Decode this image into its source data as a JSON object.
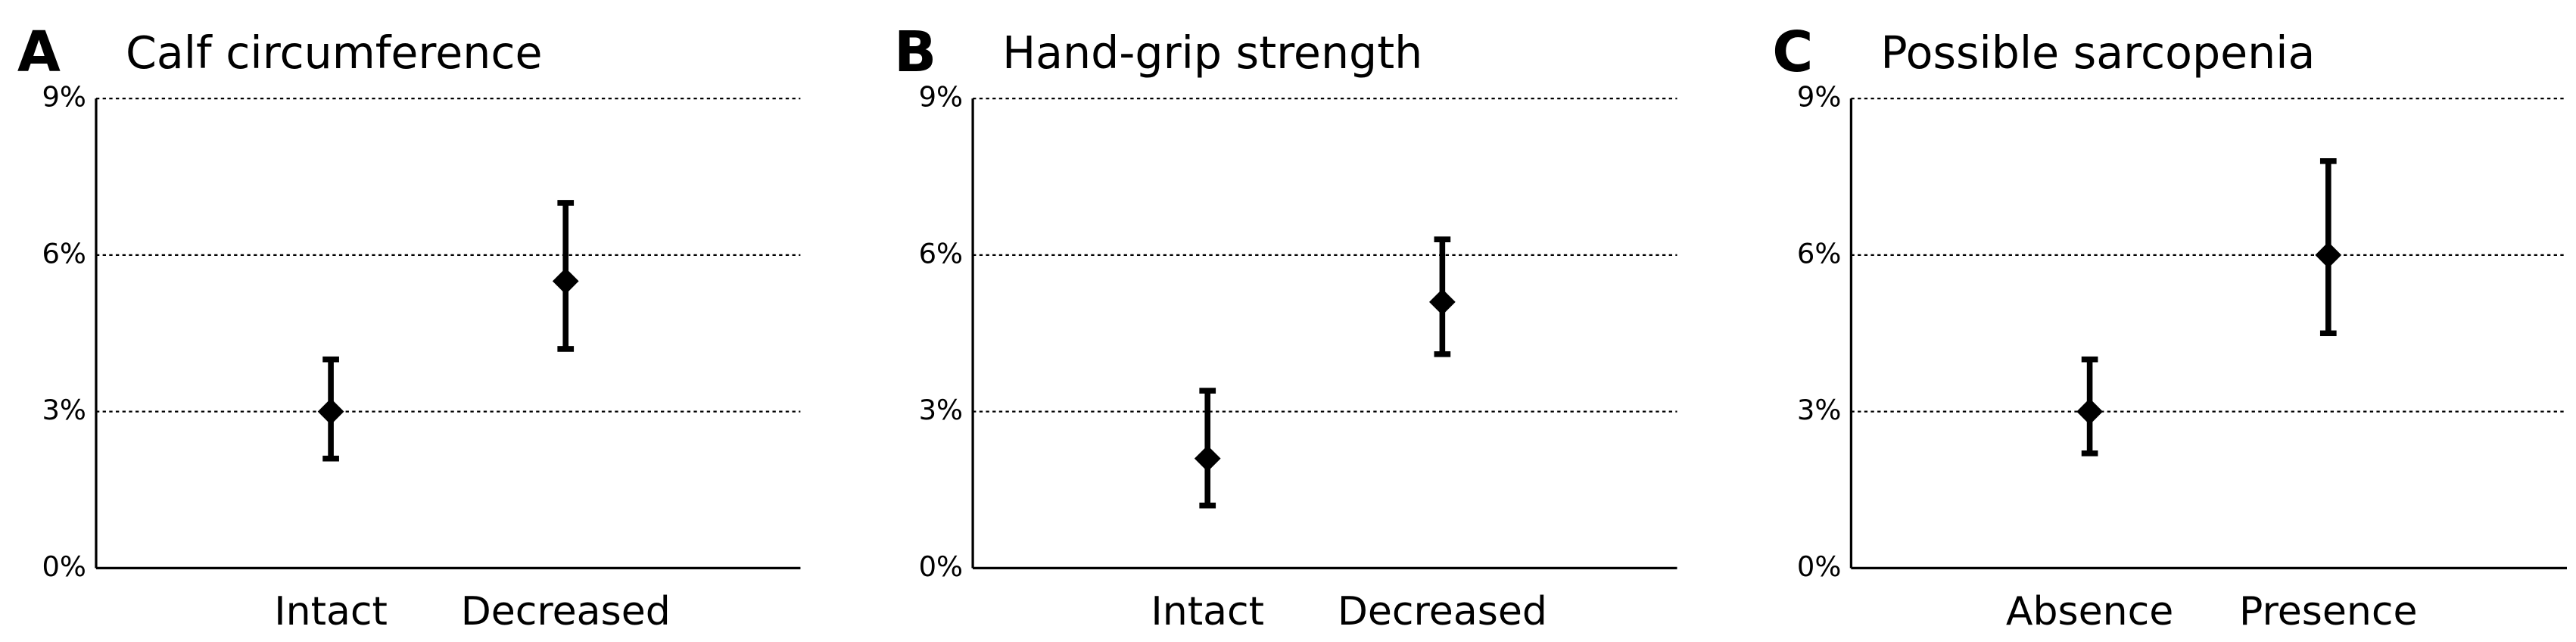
{
  "chart_data": [
    {
      "type": "errorbar",
      "panel_label": "A",
      "title": "Calf circumference",
      "categories": [
        "Intact",
        "Decreased"
      ],
      "values": [
        3.0,
        5.5
      ],
      "lower": [
        2.1,
        4.2
      ],
      "upper": [
        4.0,
        7.0
      ],
      "color": "#000000",
      "ylim": [
        0,
        9
      ],
      "yticks": [
        {
          "value": 0,
          "label": "0%"
        },
        {
          "value": 3,
          "label": "3%"
        },
        {
          "value": 6,
          "label": "6%"
        },
        {
          "value": 9,
          "label": "9%"
        }
      ],
      "grid": true
    },
    {
      "type": "errorbar",
      "panel_label": "B",
      "title": "Hand-grip strength",
      "categories": [
        "Intact",
        "Decreased"
      ],
      "values": [
        2.1,
        5.1
      ],
      "lower": [
        1.2,
        4.1
      ],
      "upper": [
        3.4,
        6.3
      ],
      "color": "#000000",
      "ylim": [
        0,
        9
      ],
      "yticks": [
        {
          "value": 0,
          "label": "0%"
        },
        {
          "value": 3,
          "label": "3%"
        },
        {
          "value": 6,
          "label": "6%"
        },
        {
          "value": 9,
          "label": "9%"
        }
      ],
      "grid": true
    },
    {
      "type": "errorbar",
      "panel_label": "C",
      "title": "Possible sarcopenia",
      "categories": [
        "Absence",
        "Presence"
      ],
      "values": [
        3.0,
        6.0
      ],
      "lower": [
        2.2,
        4.5
      ],
      "upper": [
        4.0,
        7.8
      ],
      "color": "#000000",
      "ylim": [
        0,
        9
      ],
      "yticks": [
        {
          "value": 0,
          "label": "0%"
        },
        {
          "value": 3,
          "label": "3%"
        },
        {
          "value": 6,
          "label": "6%"
        },
        {
          "value": 9,
          "label": "9%"
        }
      ],
      "grid": true
    }
  ]
}
